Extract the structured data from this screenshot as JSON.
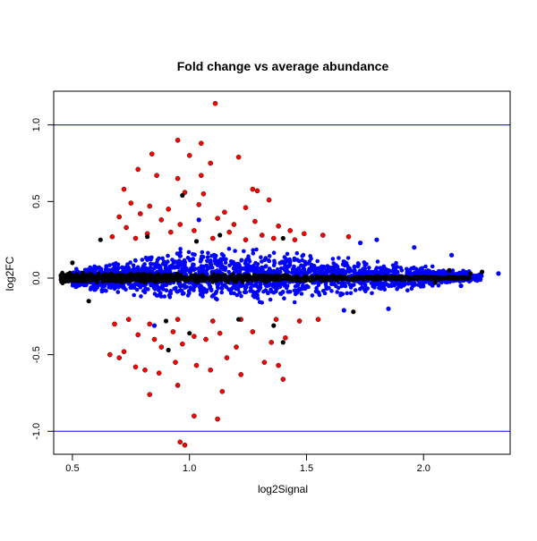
{
  "chart_data": {
    "type": "scatter",
    "title": "Fold change vs average abundance",
    "xlabel": "log2Signal",
    "ylabel": "log2FC",
    "xlim": [
      0.42,
      2.37
    ],
    "ylim": [
      -1.15,
      1.22
    ],
    "xticks": [
      {
        "value": 0.5,
        "label": "0.5"
      },
      {
        "value": 1.0,
        "label": "1.0"
      },
      {
        "value": 1.5,
        "label": "1.5"
      },
      {
        "value": 2.0,
        "label": "2.0"
      }
    ],
    "yticks": [
      {
        "value": -1.0,
        "label": "-1.0"
      },
      {
        "value": -0.5,
        "label": "-0.5"
      },
      {
        "value": 0.0,
        "label": "0.0"
      },
      {
        "value": 0.5,
        "label": "0.5"
      },
      {
        "value": 1.0,
        "label": "1.0"
      }
    ],
    "reference_lines": [
      {
        "y": 1.0,
        "color": "#000080"
      },
      {
        "y": -1.0,
        "color": "#0000ff"
      }
    ],
    "grid": false,
    "colors": {
      "black": "#000000",
      "blue": "#0000ff",
      "red": "#ff0000"
    },
    "dense_bands": [
      {
        "color": "blue",
        "x": [
          0.5,
          1.0,
          1.5,
          2.0,
          2.25
        ],
        "y_upper": [
          0.07,
          0.23,
          0.2,
          0.1,
          0.04
        ],
        "y_lower": [
          -0.08,
          -0.2,
          -0.18,
          -0.08,
          -0.03
        ]
      },
      {
        "color": "black",
        "x": [
          0.45,
          0.8,
          1.2,
          1.6,
          2.2
        ],
        "y_upper": [
          0.04,
          0.04,
          0.03,
          0.02,
          0.01
        ],
        "y_lower": [
          -0.04,
          -0.04,
          -0.03,
          -0.02,
          -0.01
        ]
      }
    ],
    "series": [
      {
        "color": "red",
        "points": [
          [
            1.11,
            1.14
          ],
          [
            0.95,
            0.9
          ],
          [
            0.84,
            0.81
          ],
          [
            1.05,
            0.88
          ],
          [
            1.0,
            0.8
          ],
          [
            1.21,
            0.79
          ],
          [
            0.86,
            0.67
          ],
          [
            1.09,
            0.75
          ],
          [
            0.95,
            0.65
          ],
          [
            1.05,
            0.67
          ],
          [
            0.78,
            0.71
          ],
          [
            0.72,
            0.58
          ],
          [
            0.98,
            0.56
          ],
          [
            1.06,
            0.55
          ],
          [
            1.27,
            0.58
          ],
          [
            1.29,
            0.57
          ],
          [
            0.75,
            0.49
          ],
          [
            0.83,
            0.47
          ],
          [
            0.91,
            0.45
          ],
          [
            1.04,
            0.48
          ],
          [
            1.15,
            0.43
          ],
          [
            1.24,
            0.46
          ],
          [
            1.34,
            0.51
          ],
          [
            0.7,
            0.4
          ],
          [
            0.79,
            0.42
          ],
          [
            0.88,
            0.38
          ],
          [
            0.96,
            0.35
          ],
          [
            1.12,
            0.39
          ],
          [
            1.19,
            0.35
          ],
          [
            1.28,
            0.37
          ],
          [
            1.38,
            0.34
          ],
          [
            1.43,
            0.31
          ],
          [
            0.73,
            0.33
          ],
          [
            0.82,
            0.29
          ],
          [
            0.92,
            0.3
          ],
          [
            1.02,
            0.31
          ],
          [
            1.17,
            0.3
          ],
          [
            1.31,
            0.28
          ],
          [
            1.49,
            0.29
          ],
          [
            1.57,
            0.28
          ],
          [
            1.68,
            0.27
          ],
          [
            0.67,
            0.27
          ],
          [
            0.77,
            0.26
          ],
          [
            1.1,
            0.26
          ],
          [
            1.24,
            0.25
          ],
          [
            1.36,
            0.26
          ],
          [
            1.45,
            0.25
          ],
          [
            0.68,
            -0.3
          ],
          [
            0.74,
            -0.27
          ],
          [
            0.83,
            -0.3
          ],
          [
            0.95,
            -0.27
          ],
          [
            1.1,
            -0.28
          ],
          [
            1.22,
            -0.27
          ],
          [
            1.37,
            -0.27
          ],
          [
            1.47,
            -0.28
          ],
          [
            1.55,
            -0.27
          ],
          [
            0.66,
            -0.5
          ],
          [
            0.72,
            -0.48
          ],
          [
            0.78,
            -0.37
          ],
          [
            0.85,
            -0.4
          ],
          [
            0.88,
            -0.45
          ],
          [
            0.93,
            -0.35
          ],
          [
            0.97,
            -0.43
          ],
          [
            1.02,
            -0.38
          ],
          [
            1.07,
            -0.4
          ],
          [
            1.13,
            -0.36
          ],
          [
            1.2,
            -0.45
          ],
          [
            1.27,
            -0.35
          ],
          [
            1.35,
            -0.42
          ],
          [
            1.41,
            -0.39
          ],
          [
            0.7,
            -0.52
          ],
          [
            0.77,
            -0.58
          ],
          [
            0.81,
            -0.6
          ],
          [
            0.87,
            -0.62
          ],
          [
            0.94,
            -0.55
          ],
          [
            1.03,
            -0.57
          ],
          [
            1.09,
            -0.6
          ],
          [
            1.16,
            -0.52
          ],
          [
            1.22,
            -0.63
          ],
          [
            1.32,
            -0.55
          ],
          [
            1.38,
            -0.57
          ],
          [
            1.4,
            -0.66
          ],
          [
            0.83,
            -0.76
          ],
          [
            0.95,
            -0.7
          ],
          [
            1.14,
            -0.74
          ],
          [
            1.02,
            -0.9
          ],
          [
            1.12,
            -0.92
          ],
          [
            0.96,
            -1.07
          ],
          [
            0.98,
            -1.09
          ]
        ]
      },
      {
        "color": "black",
        "points": [
          [
            0.97,
            0.54
          ],
          [
            1.13,
            0.28
          ],
          [
            0.82,
            0.27
          ],
          [
            1.4,
            0.26
          ],
          [
            1.03,
            0.24
          ],
          [
            0.62,
            0.25
          ],
          [
            1.21,
            -0.27
          ],
          [
            1.36,
            -0.31
          ],
          [
            0.9,
            -0.28
          ],
          [
            1.4,
            -0.42
          ],
          [
            0.91,
            -0.47
          ],
          [
            1.0,
            -0.36
          ],
          [
            1.7,
            -0.22
          ],
          [
            0.57,
            -0.15
          ],
          [
            0.5,
            0.1
          ],
          [
            2.11,
            0.05
          ],
          [
            2.2,
            0.03
          ],
          [
            2.25,
            0.04
          ],
          [
            2.05,
            -0.03
          ]
        ]
      },
      {
        "color": "blue",
        "points": [
          [
            1.8,
            0.25
          ],
          [
            1.96,
            0.2
          ],
          [
            2.12,
            0.15
          ],
          [
            2.32,
            0.03
          ],
          [
            1.85,
            -0.2
          ],
          [
            1.66,
            -0.21
          ],
          [
            2.16,
            -0.05
          ],
          [
            0.85,
            -0.31
          ],
          [
            1.04,
            0.38
          ],
          [
            1.73,
            0.23
          ]
        ]
      }
    ]
  }
}
